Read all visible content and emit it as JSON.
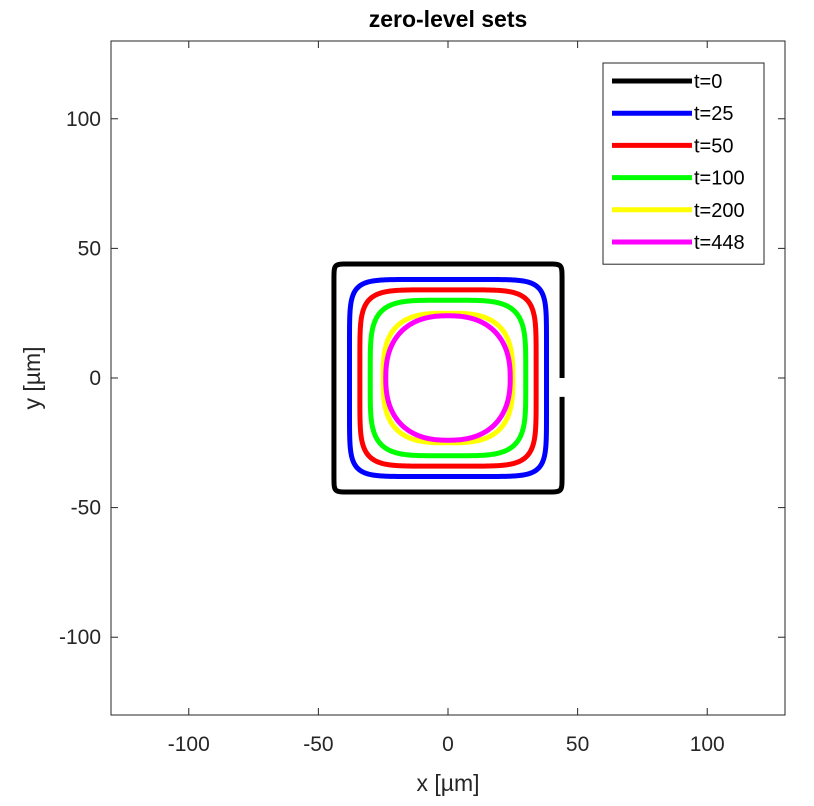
{
  "chart_data": {
    "type": "line",
    "title": "zero-level sets",
    "xlabel": "x [µm]",
    "ylabel": "y [µm]",
    "xlim": [
      -130,
      130
    ],
    "ylim": [
      -130,
      130
    ],
    "xticks": [
      -100,
      -50,
      0,
      50,
      100
    ],
    "yticks": [
      -100,
      -50,
      0,
      50,
      100
    ],
    "xtick_labels": [
      "-100",
      "-50",
      "0",
      "50",
      "100"
    ],
    "ytick_labels": [
      "-100",
      "-50",
      "0",
      "50",
      "100"
    ],
    "grid": false,
    "legend_position": "top-right",
    "series": [
      {
        "name": "t=0",
        "color": "#000000",
        "center": [
          0,
          0
        ],
        "half_width": 44,
        "half_height": 44,
        "exponent": 40
      },
      {
        "name": "t=25",
        "color": "#0000ff",
        "center": [
          0,
          0
        ],
        "half_width": 38,
        "half_height": 38,
        "exponent": 8
      },
      {
        "name": "t=50",
        "color": "#ff0000",
        "center": [
          0,
          0
        ],
        "half_width": 34,
        "half_height": 34,
        "exponent": 6
      },
      {
        "name": "t=100",
        "color": "#00ff00",
        "center": [
          0,
          0
        ],
        "half_width": 30,
        "half_height": 30,
        "exponent": 4.5
      },
      {
        "name": "t=200",
        "color": "#ffff00",
        "center": [
          0,
          0
        ],
        "half_width": 25,
        "half_height": 25,
        "exponent": 3
      },
      {
        "name": "t=448",
        "color": "#ff00ff",
        "center": [
          0,
          0
        ],
        "half_width": 24,
        "half_height": 24,
        "exponent": 2.4
      }
    ]
  }
}
